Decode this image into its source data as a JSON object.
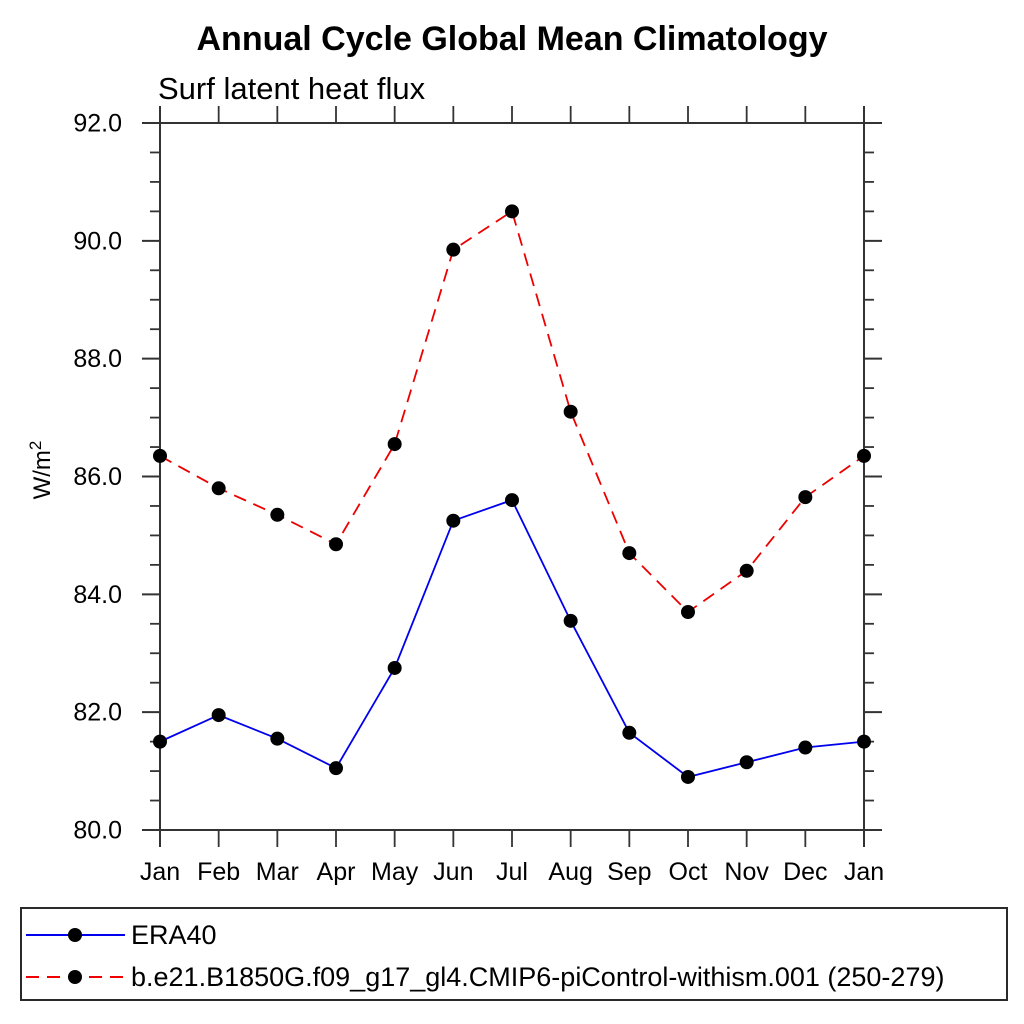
{
  "page": {
    "background": "#ffffff"
  },
  "chart_data": {
    "type": "line",
    "title": "Annual Cycle Global Mean Climatology",
    "subtitle": "Surf latent heat flux",
    "ylabel": "W/m²",
    "ylabel_parts": {
      "base": "W/m",
      "sup": "2"
    },
    "categories": [
      "Jan",
      "Feb",
      "Mar",
      "Apr",
      "May",
      "Jun",
      "Jul",
      "Aug",
      "Sep",
      "Oct",
      "Nov",
      "Dec",
      "Jan"
    ],
    "ylim": [
      80,
      92
    ],
    "yticks": [
      80,
      82,
      84,
      86,
      88,
      90,
      92
    ],
    "ytick_labels": [
      "80.0",
      "82.0",
      "84.0",
      "86.0",
      "88.0",
      "90.0",
      "92.0"
    ],
    "ytick_minor_step": 0.5,
    "grid": false,
    "legend_position": "bottom-left-box",
    "series": [
      {
        "name": "ERA40",
        "color": "#0000ee",
        "line_style": "solid",
        "marker": "circle",
        "marker_color": "#000000",
        "values": [
          81.5,
          81.95,
          81.55,
          81.05,
          82.75,
          85.25,
          85.6,
          83.55,
          81.65,
          80.9,
          81.15,
          81.4,
          81.5
        ]
      },
      {
        "name": "b.e21.B1850G.f09_g17_gl4.CMIP6-piControl-withism.001 (250-279)",
        "color": "#ee0000",
        "line_style": "dashed",
        "marker": "circle",
        "marker_color": "#000000",
        "values": [
          86.35,
          85.8,
          85.35,
          84.85,
          86.55,
          89.85,
          90.5,
          87.1,
          84.7,
          83.7,
          84.4,
          85.65,
          86.35
        ]
      }
    ]
  }
}
